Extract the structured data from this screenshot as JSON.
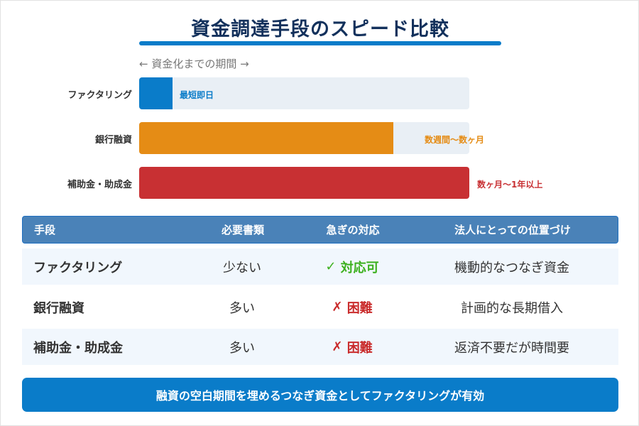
{
  "title": "資金調達手段のスピード比較",
  "axis_label": "← 資金化までの期間 →",
  "bars": [
    {
      "label": "ファクタリング",
      "value_label": "最短即日",
      "fill_fraction": 0.1,
      "color": "#0a7cc9"
    },
    {
      "label": "銀行融資",
      "value_label": "数週間〜数ヶ月",
      "fill_fraction": 0.77,
      "color": "#e58c15"
    },
    {
      "label": "補助金・助成金",
      "value_label": "数ヶ月〜1年以上",
      "fill_fraction": 1.0,
      "color": "#c83033"
    }
  ],
  "table": {
    "headers": [
      "手段",
      "必要書類",
      "急ぎの対応",
      "法人にとっての位置づけ"
    ],
    "rows": [
      {
        "method": "ファクタリング",
        "docs": "少ない",
        "icon": "✓",
        "urgency": "対応可",
        "position": "機動的なつなぎ資金"
      },
      {
        "method": "銀行融資",
        "docs": "多い",
        "icon": "✗",
        "urgency": "困難",
        "position": "計画的な長期借入"
      },
      {
        "method": "補助金・助成金",
        "docs": "多い",
        "icon": "✗",
        "urgency": "困難",
        "position": "返済不要だが時間要"
      }
    ]
  },
  "banner": "融資の空白期間を埋めるつなぎ資金としてファクタリングが有効"
}
